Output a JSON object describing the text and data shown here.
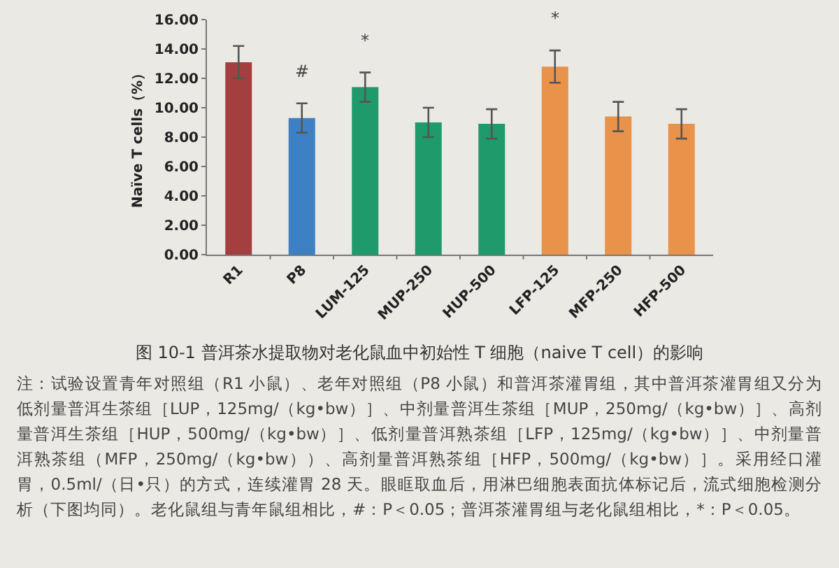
{
  "chart_data": {
    "type": "bar",
    "ylabel": "Naïve T cells（%）",
    "categories": [
      "R1",
      "P8",
      "LUM-125",
      "MUP-250",
      "HUP-500",
      "LFP-125",
      "MFP-250",
      "HFP-500"
    ],
    "values": [
      13.1,
      9.3,
      11.4,
      9.0,
      8.9,
      12.8,
      9.4,
      8.9
    ],
    "errors": [
      1.1,
      1.0,
      1.0,
      1.0,
      1.0,
      1.1,
      1.0,
      1.0
    ],
    "colors": [
      "#a3403f",
      "#3d80c4",
      "#1f9a6b",
      "#1f9a6b",
      "#1f9a6b",
      "#e8924a",
      "#e8924a",
      "#e8924a"
    ],
    "ylim": [
      0,
      16
    ],
    "yticks": [
      {
        "value": 0,
        "label": "0.00"
      },
      {
        "value": 2,
        "label": "2.00"
      },
      {
        "value": 4,
        "label": "4.00"
      },
      {
        "value": 6,
        "label": "6.00"
      },
      {
        "value": 8,
        "label": "8.00"
      },
      {
        "value": 10,
        "label": "10.00"
      },
      {
        "value": 12,
        "label": "12.00"
      },
      {
        "value": 14,
        "label": "14.00"
      },
      {
        "value": 16,
        "label": "16.00"
      }
    ],
    "annotations": [
      {
        "text": "#",
        "x": "P8",
        "y": 9.3
      },
      {
        "text": "*",
        "x": "LUM-125",
        "y": 11.4
      },
      {
        "text": "*",
        "x": "LFP-125",
        "y": 12.8
      },
      "图 10-1 普洱茶水提取物对老化鼠血中初始性 T 细胞（naive T cell）的影响",
      "注：试验设置青年对照组（R1 小鼠）、老年对照组（P8 小鼠）和普洱茶灌胃组，其中普洱茶灌胃组又分为低剂量普洱生茶组［LUP，125mg/（kg•bw）］、中剂量普洱生茶组［MUP，250mg/（kg•bw）］、高剂量普洱生茶组［HUP，500mg/（kg•bw）］、低剂量普洱熟茶组［LFP，125mg/（kg•bw）］、中剂量普洱熟茶组（MFP，250mg/（kg•bw））、高剂量普洱熟茶组［HFP，500mg/（kg•bw）］。采用经口灌胃，0.5ml/（日•只）的方式，连续灌胃 28 天。眼眶取血后，用淋巴细胞表面抗体标记后，流式细胞检测分析（下图均同）。老化鼠组与青年鼠组相比，#：P＜0.05；普洱茶灌胃组与老化鼠组相比，*：P＜0.05。"
    ]
  }
}
